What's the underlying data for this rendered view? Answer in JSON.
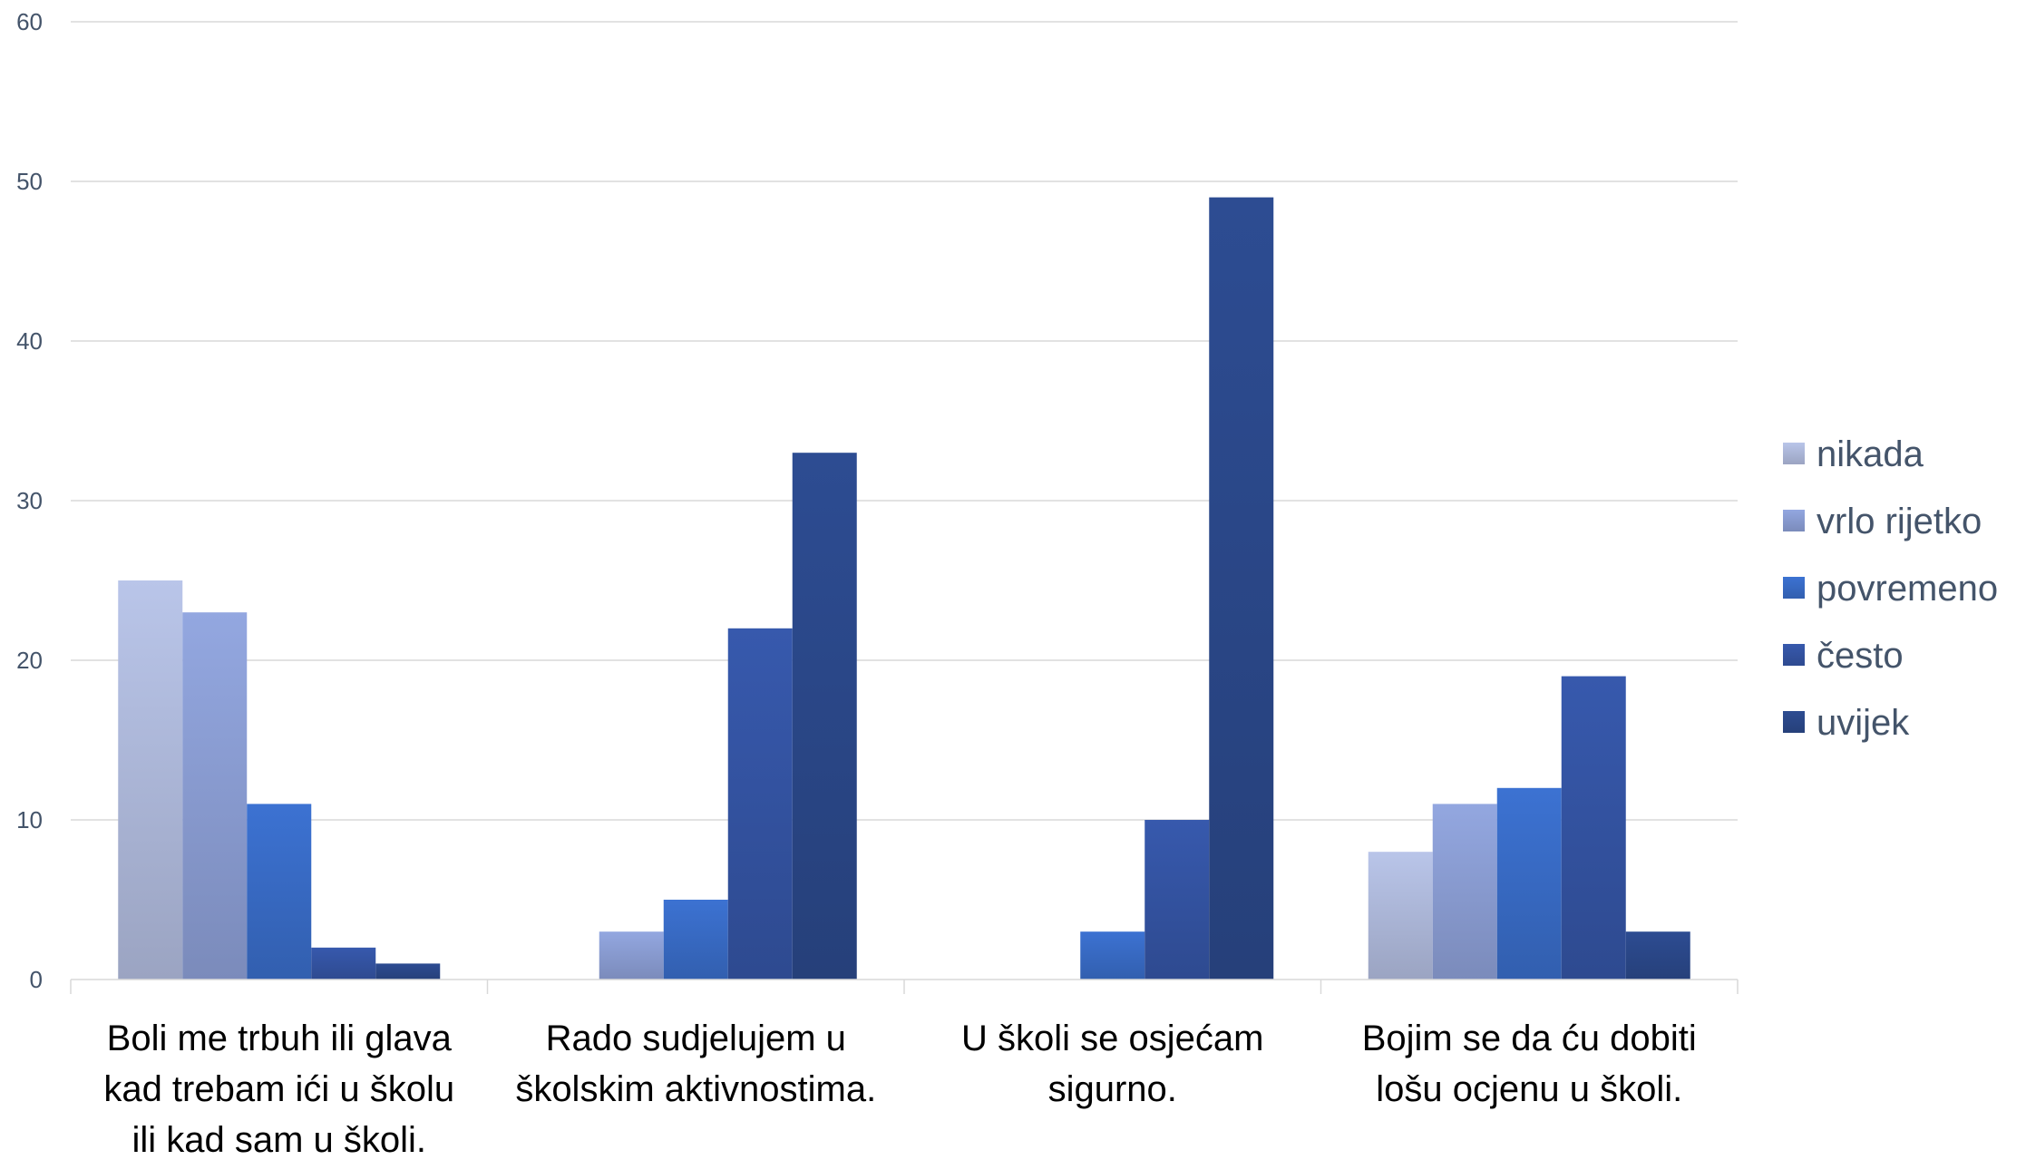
{
  "chart_data": {
    "type": "bar",
    "categories": [
      [
        "Boli me trbuh ili glava",
        "kad trebam ići u školu",
        "ili kad sam u školi."
      ],
      [
        "Rado sudjelujem u",
        "školskim aktivnostima."
      ],
      [
        "U školi se osjećam",
        "sigurno."
      ],
      [
        "Bojim se da ću dobiti",
        "lošu ocjenu u školi."
      ]
    ],
    "series": [
      {
        "name": "nikada",
        "values": [
          25,
          0,
          0,
          8
        ],
        "color": "#b4bfe2"
      },
      {
        "name": "vrlo rijetko",
        "values": [
          23,
          3,
          0,
          11
        ],
        "color": "#8fa2d9"
      },
      {
        "name": "povremeno",
        "values": [
          11,
          5,
          3,
          12
        ],
        "color": "#3a6fcc"
      },
      {
        "name": "često",
        "values": [
          2,
          22,
          10,
          19
        ],
        "color": "#3556a8"
      },
      {
        "name": "uvijek",
        "values": [
          1,
          33,
          49,
          3
        ],
        "color": "#2c4a8e"
      }
    ],
    "ylim": [
      0,
      60
    ],
    "yticks": [
      0,
      10,
      20,
      30,
      40,
      50,
      60
    ],
    "grid": true,
    "legend_position": "right",
    "title": "",
    "xlabel": "",
    "ylabel": ""
  }
}
